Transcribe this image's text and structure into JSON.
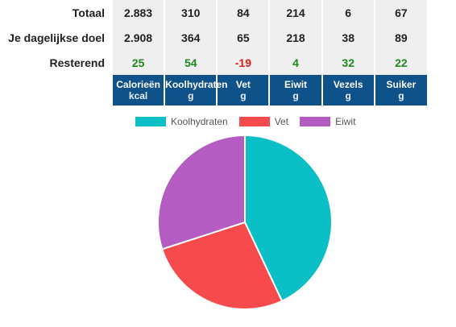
{
  "table": {
    "rows": [
      {
        "label": "Totaal",
        "values": [
          "2.883",
          "310",
          "84",
          "214",
          "6",
          "67"
        ],
        "status": [
          "",
          "",
          "",
          "",
          "",
          ""
        ]
      },
      {
        "label": "Je dagelijkse doel",
        "values": [
          "2.908",
          "364",
          "65",
          "218",
          "38",
          "89"
        ],
        "status": [
          "",
          "",
          "",
          "",
          "",
          ""
        ]
      },
      {
        "label": "Resterend",
        "values": [
          "25",
          "54",
          "-19",
          "4",
          "32",
          "22"
        ],
        "status": [
          "good",
          "good",
          "bad",
          "good",
          "good",
          "good"
        ]
      }
    ],
    "headers": [
      {
        "name": "Calorieën",
        "unit": "kcal"
      },
      {
        "name": "Koolhydraten",
        "unit": "g"
      },
      {
        "name": "Vet",
        "unit": "g"
      },
      {
        "name": "Eiwit",
        "unit": "g"
      },
      {
        "name": "Vezels",
        "unit": "g"
      },
      {
        "name": "Suiker",
        "unit": "g"
      }
    ]
  },
  "chart_data": {
    "type": "pie",
    "categories": [
      "Koolhydraten",
      "Vet",
      "Eiwit"
    ],
    "values": [
      43,
      27,
      30
    ],
    "colors": [
      "#0bbfc6",
      "#f74a4c",
      "#b55cc3"
    ],
    "legend_position": "top"
  }
}
